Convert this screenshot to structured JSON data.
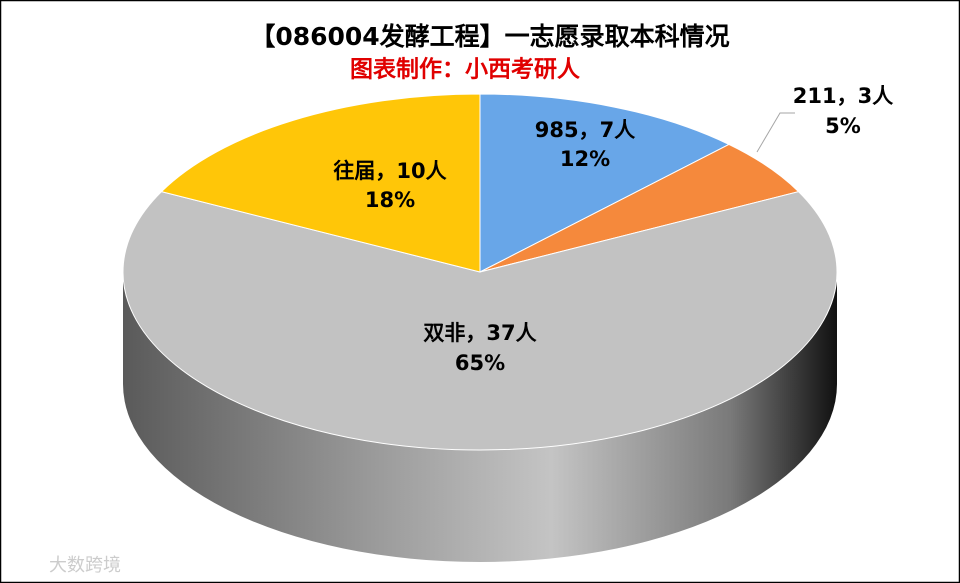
{
  "chart_data": {
    "type": "pie",
    "title": "【086004发酵工程】一志愿录取本科情况",
    "subtitle": "图表制作：小西考研人",
    "categories": [
      "985",
      "211",
      "双非",
      "往届"
    ],
    "separator": "，",
    "values": [
      7,
      3,
      37,
      10
    ],
    "value_labels": [
      "7人",
      "3人",
      "37人",
      "10人"
    ],
    "percentages": [
      12,
      5,
      65,
      18
    ],
    "percentage_labels": [
      "12%",
      "5%",
      "65%",
      "18%"
    ],
    "colors": [
      "#68a6e8",
      "#f5893c",
      "#c2c2c2",
      "#ffc608"
    ],
    "watermark": "大数跨境"
  }
}
